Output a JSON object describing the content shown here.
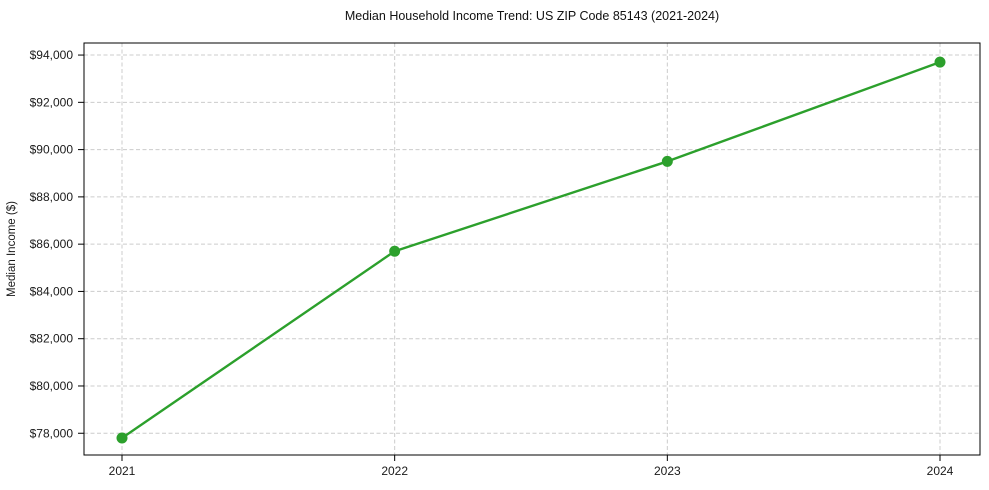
{
  "chart_data": {
    "type": "line",
    "title": "Median Household Income Trend: US ZIP Code 85143 (2021-2024)",
    "xlabel": "",
    "ylabel": "Median Income ($)",
    "x": [
      "2021",
      "2022",
      "2023",
      "2024"
    ],
    "values": [
      77800,
      85700,
      89500,
      93700
    ],
    "yticks": [
      78000,
      80000,
      82000,
      84000,
      86000,
      88000,
      90000,
      92000,
      94000
    ],
    "ytick_labels": [
      "$78,000",
      "$80,000",
      "$82,000",
      "$84,000",
      "$86,000",
      "$88,000",
      "$90,000",
      "$92,000",
      "$94,000"
    ],
    "ylim": [
      77080,
      94510
    ],
    "grid": true,
    "grid_style": "dashed",
    "legend_position": "none",
    "line_color": "#2ca02c",
    "marker": "circle",
    "grid_color": "#cccccc",
    "axis_color": "#000000",
    "text_color": "#1a1a1a",
    "background": "#ffffff"
  }
}
